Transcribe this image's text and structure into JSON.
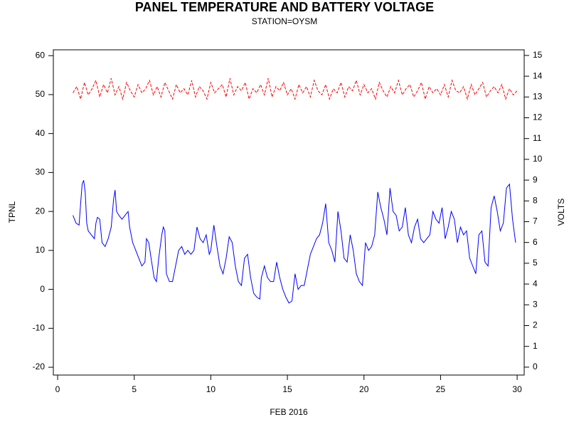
{
  "chart_data": {
    "type": "line",
    "title": "PANEL TEMPERATURE AND BATTERY VOLTAGE",
    "subtitle": "STATION=OYSM",
    "x_label": "FEB 2016",
    "y_label": "TPNL",
    "y2_label": "VOLTS",
    "xlim": [
      -0.28,
      30.46
    ],
    "xticks": [
      0,
      5,
      10,
      15,
      20,
      25,
      30
    ],
    "ylim": [
      -22,
      61.5
    ],
    "yticks": [
      -20,
      -10,
      0,
      10,
      20,
      30,
      40,
      50,
      60
    ],
    "y2lim": [
      -0.38,
      15.27
    ],
    "y2ticks": [
      0,
      1,
      2,
      3,
      4,
      5,
      6,
      7,
      8,
      9,
      10,
      11,
      12,
      13,
      14,
      15
    ],
    "series": [
      {
        "color": "#0000ff",
        "axis": "y",
        "dashed": false,
        "x": [
          1.0,
          1.2,
          1.4,
          1.5,
          1.6,
          1.7,
          1.8,
          1.9,
          2.0,
          2.2,
          2.4,
          2.5,
          2.6,
          2.75,
          2.9,
          3.1,
          3.3,
          3.5,
          3.65,
          3.75,
          3.85,
          4.0,
          4.2,
          4.4,
          4.6,
          4.7,
          4.9,
          5.1,
          5.3,
          5.5,
          5.7,
          5.8,
          5.95,
          6.1,
          6.3,
          6.45,
          6.6,
          6.8,
          6.9,
          7.0,
          7.1,
          7.3,
          7.5,
          7.7,
          7.9,
          8.1,
          8.3,
          8.5,
          8.7,
          8.9,
          9.1,
          9.3,
          9.5,
          9.7,
          9.9,
          10.0,
          10.2,
          10.4,
          10.6,
          10.8,
          11.0,
          11.2,
          11.4,
          11.6,
          11.8,
          12.0,
          12.2,
          12.4,
          12.6,
          12.8,
          13.0,
          13.2,
          13.3,
          13.5,
          13.7,
          13.9,
          14.1,
          14.3,
          14.5,
          14.7,
          14.9,
          15.1,
          15.3,
          15.5,
          15.7,
          15.9,
          16.1,
          16.3,
          16.5,
          16.7,
          16.9,
          17.1,
          17.3,
          17.5,
          17.7,
          17.9,
          18.1,
          18.3,
          18.5,
          18.7,
          18.9,
          19.1,
          19.3,
          19.5,
          19.7,
          19.9,
          20.1,
          20.3,
          20.5,
          20.7,
          20.9,
          21.1,
          21.3,
          21.5,
          21.7,
          21.9,
          22.1,
          22.3,
          22.5,
          22.7,
          22.9,
          23.1,
          23.3,
          23.5,
          23.7,
          23.9,
          24.1,
          24.3,
          24.5,
          24.7,
          24.9,
          25.1,
          25.3,
          25.5,
          25.7,
          25.9,
          26.1,
          26.3,
          26.5,
          26.7,
          26.9,
          27.1,
          27.3,
          27.5,
          27.7,
          27.9,
          28.1,
          28.3,
          28.5,
          28.7,
          28.9,
          29.1,
          29.3,
          29.5,
          29.7,
          29.9
        ],
        "values": [
          19,
          17,
          16.5,
          22,
          27,
          28,
          25,
          17,
          15,
          14,
          13,
          17,
          18.5,
          18,
          12,
          11,
          13,
          16,
          23,
          25.5,
          20,
          19,
          18,
          19,
          20,
          16,
          12,
          10,
          8,
          6,
          7,
          13,
          12,
          8,
          3,
          2,
          8,
          14,
          16,
          15,
          4,
          2,
          2,
          6,
          10,
          11,
          9,
          10,
          9,
          10,
          16,
          13,
          12,
          14,
          9,
          10,
          16.5,
          11,
          6,
          4,
          8,
          13.5,
          12,
          6,
          2,
          1,
          8,
          9,
          3,
          -1,
          -2,
          -2.5,
          3,
          6,
          3,
          2,
          2,
          7,
          3,
          0,
          -2,
          -3.5,
          -3,
          4,
          0,
          1,
          1,
          5,
          9,
          11,
          13,
          14,
          17,
          22,
          12,
          10,
          7,
          20,
          15,
          8,
          7,
          14,
          10,
          4,
          2,
          1,
          12,
          10,
          11,
          14,
          25,
          21,
          18,
          14,
          26,
          20,
          19,
          15,
          16,
          21,
          14,
          12,
          16,
          18,
          13,
          12,
          13,
          14,
          20,
          18,
          17,
          21,
          13,
          16,
          20,
          18,
          12,
          16,
          14,
          15,
          8,
          6,
          4,
          14,
          15,
          7,
          6,
          21,
          24,
          20,
          15,
          17,
          26,
          27,
          18,
          12
        ]
      },
      {
        "color": "#ff0000",
        "axis": "y2",
        "dashed": true,
        "x": [
          1,
          1.25,
          1.5,
          1.75,
          2,
          2.25,
          2.5,
          2.75,
          3,
          3.25,
          3.5,
          3.75,
          4,
          4.25,
          4.5,
          4.75,
          5,
          5.25,
          5.5,
          5.75,
          6,
          6.25,
          6.5,
          6.75,
          7,
          7.25,
          7.5,
          7.75,
          8,
          8.25,
          8.5,
          8.75,
          9,
          9.25,
          9.5,
          9.75,
          10,
          10.25,
          10.5,
          10.75,
          11,
          11.25,
          11.5,
          11.75,
          12,
          12.25,
          12.5,
          12.75,
          13,
          13.25,
          13.5,
          13.75,
          14,
          14.25,
          14.5,
          14.75,
          15,
          15.25,
          15.5,
          15.75,
          16,
          16.25,
          16.5,
          16.75,
          17,
          17.25,
          17.5,
          17.75,
          18,
          18.25,
          18.5,
          18.75,
          19,
          19.25,
          19.5,
          19.75,
          20,
          20.25,
          20.5,
          20.75,
          21,
          21.25,
          21.5,
          21.75,
          22,
          22.25,
          22.5,
          22.75,
          23,
          23.25,
          23.5,
          23.75,
          24,
          24.25,
          24.5,
          24.75,
          25,
          25.25,
          25.5,
          25.75,
          26,
          26.25,
          26.5,
          26.75,
          27,
          27.25,
          27.5,
          27.75,
          28,
          28.25,
          28.5,
          28.75,
          29,
          29.25,
          29.5,
          29.75,
          30
        ],
        "values": [
          13.2,
          13.5,
          12.9,
          13.7,
          13.1,
          13.4,
          13.8,
          13.0,
          13.6,
          13.2,
          13.9,
          13.1,
          13.5,
          12.9,
          13.7,
          13.3,
          13.0,
          13.6,
          13.2,
          13.4,
          13.8,
          13.1,
          13.5,
          13.0,
          13.7,
          13.3,
          12.9,
          13.6,
          13.2,
          13.4,
          13.1,
          13.8,
          13.0,
          13.5,
          13.3,
          12.9,
          13.7,
          13.2,
          13.4,
          13.6,
          13.0,
          13.9,
          13.1,
          13.5,
          13.3,
          13.7,
          12.9,
          13.4,
          13.2,
          13.6,
          13.1,
          13.9,
          13.0,
          13.5,
          13.3,
          13.7,
          13.1,
          13.4,
          12.9,
          13.6,
          13.2,
          13.5,
          13.0,
          13.8,
          13.3,
          13.1,
          13.6,
          12.9,
          13.4,
          13.2,
          13.7,
          13.0,
          13.5,
          13.3,
          13.8,
          13.1,
          13.6,
          13.2,
          13.4,
          12.9,
          13.7,
          13.3,
          13.0,
          13.5,
          13.2,
          13.8,
          13.1,
          13.4,
          13.6,
          13.0,
          13.3,
          13.7,
          12.9,
          13.5,
          13.2,
          13.4,
          13.1,
          13.6,
          13.0,
          13.8,
          13.3,
          13.2,
          13.5,
          12.9,
          13.6,
          13.1,
          13.4,
          13.7,
          13.0,
          13.3,
          13.5,
          13.2,
          13.6,
          12.9,
          13.4,
          13.1,
          13.3
        ]
      }
    ]
  }
}
